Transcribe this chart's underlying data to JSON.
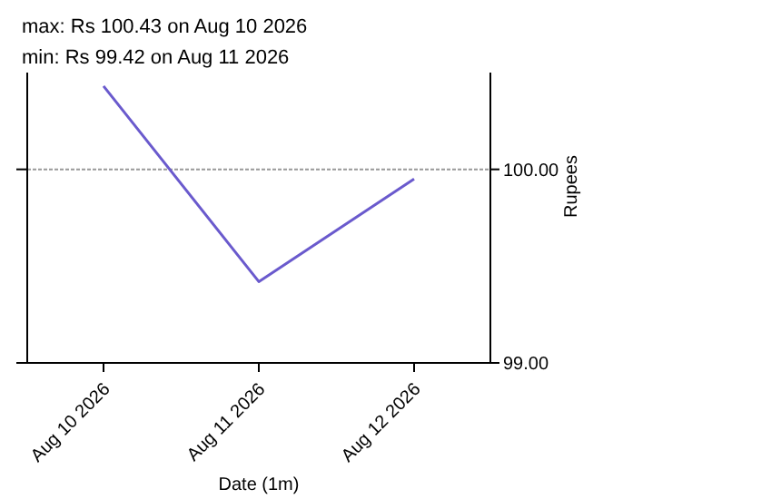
{
  "chart_data": {
    "type": "line",
    "xlabel": "Date (1m)",
    "ylabel": "Rupees",
    "annotations": [
      "max: Rs 100.43 on Aug 10 2026",
      "min: Rs 99.42 on Aug 11 2026"
    ],
    "categories": [
      "Aug 10 2026",
      "Aug 11 2026",
      "Aug 12 2026"
    ],
    "series": [
      {
        "color": "#6a5acd",
        "values": [
          100.43,
          99.42,
          99.95
        ]
      }
    ],
    "ylim": [
      99,
      100.5
    ],
    "yticks": [
      {
        "value": 99,
        "label": "99.00"
      },
      {
        "value": 100,
        "label": "100.00"
      }
    ],
    "grid": "y",
    "legend": false,
    "marker": "none",
    "line_style": "solid"
  }
}
